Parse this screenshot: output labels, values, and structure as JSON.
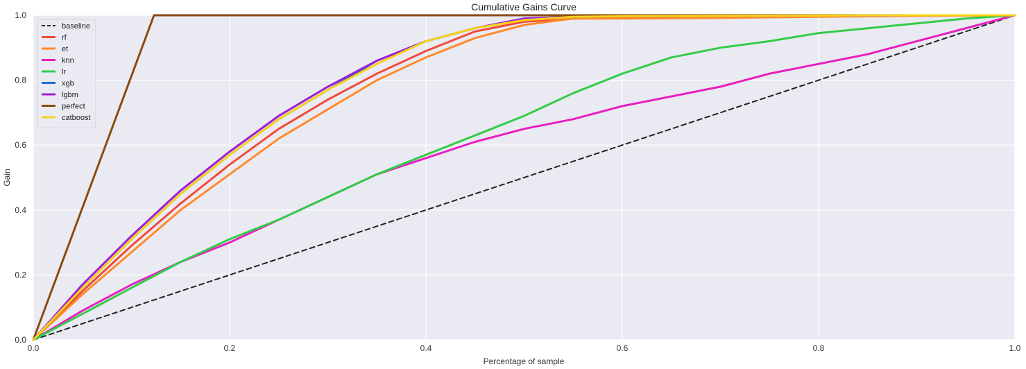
{
  "chart_data": {
    "type": "line",
    "title": "Cumulative Gains Curve",
    "xlabel": "Percentage of sample",
    "ylabel": "Gain",
    "xlim": [
      0,
      1
    ],
    "ylim": [
      0,
      1
    ],
    "xticks": [
      "0.0",
      "0.2",
      "0.4",
      "0.6",
      "0.8",
      "1.0"
    ],
    "yticks": [
      "0.0",
      "0.2",
      "0.4",
      "0.6",
      "0.8",
      "1.0"
    ],
    "grid": true,
    "legend_position": "top-left",
    "series": [
      {
        "name": "baseline",
        "color": "#222222",
        "dashed": true,
        "x": [
          0,
          1
        ],
        "y": [
          0,
          1
        ]
      },
      {
        "name": "rf",
        "color": "#f14a3a",
        "dashed": false,
        "x": [
          0,
          0.05,
          0.1,
          0.15,
          0.2,
          0.25,
          0.3,
          0.35,
          0.4,
          0.45,
          0.5,
          0.55,
          0.6,
          0.7,
          0.8,
          0.9,
          1.0
        ],
        "y": [
          0,
          0.15,
          0.29,
          0.42,
          0.54,
          0.65,
          0.74,
          0.82,
          0.89,
          0.95,
          0.98,
          0.99,
          0.995,
          0.997,
          0.998,
          0.999,
          1.0
        ]
      },
      {
        "name": "et",
        "color": "#ff8a2a",
        "dashed": false,
        "x": [
          0,
          0.05,
          0.1,
          0.15,
          0.2,
          0.25,
          0.3,
          0.35,
          0.4,
          0.45,
          0.5,
          0.55,
          0.6,
          0.7,
          0.8,
          0.9,
          1.0
        ],
        "y": [
          0,
          0.14,
          0.27,
          0.4,
          0.51,
          0.62,
          0.71,
          0.8,
          0.87,
          0.93,
          0.97,
          0.99,
          0.99,
          0.992,
          0.995,
          0.998,
          1.0
        ]
      },
      {
        "name": "knn",
        "color": "#e81fc0",
        "dashed": false,
        "x": [
          0,
          0.05,
          0.1,
          0.15,
          0.2,
          0.25,
          0.3,
          0.35,
          0.4,
          0.45,
          0.5,
          0.55,
          0.6,
          0.65,
          0.7,
          0.75,
          0.8,
          0.85,
          0.9,
          0.95,
          1.0
        ],
        "y": [
          0,
          0.09,
          0.17,
          0.24,
          0.3,
          0.37,
          0.44,
          0.51,
          0.56,
          0.61,
          0.65,
          0.68,
          0.72,
          0.75,
          0.78,
          0.82,
          0.85,
          0.88,
          0.92,
          0.96,
          1.0
        ]
      },
      {
        "name": "lr",
        "color": "#33cc48",
        "dashed": false,
        "x": [
          0,
          0.05,
          0.1,
          0.15,
          0.2,
          0.25,
          0.3,
          0.35,
          0.4,
          0.45,
          0.5,
          0.55,
          0.6,
          0.65,
          0.7,
          0.75,
          0.8,
          0.85,
          0.9,
          0.95,
          1.0
        ],
        "y": [
          0,
          0.08,
          0.16,
          0.24,
          0.31,
          0.37,
          0.44,
          0.51,
          0.57,
          0.63,
          0.69,
          0.76,
          0.82,
          0.87,
          0.9,
          0.92,
          0.945,
          0.96,
          0.975,
          0.99,
          1.0
        ]
      },
      {
        "name": "xgb",
        "color": "#1f6fd1",
        "dashed": false,
        "x": [
          0,
          0.05,
          0.1,
          0.15,
          0.2,
          0.25,
          0.3,
          0.35,
          0.4,
          0.45,
          0.5,
          0.55,
          0.6,
          0.7,
          0.8,
          0.9,
          1.0
        ],
        "y": [
          0,
          0.16,
          0.31,
          0.45,
          0.57,
          0.68,
          0.77,
          0.86,
          0.92,
          0.96,
          0.99,
          0.995,
          0.997,
          0.998,
          0.999,
          1.0,
          1.0
        ]
      },
      {
        "name": "lgbm",
        "color": "#a21cd6",
        "dashed": false,
        "x": [
          0,
          0.05,
          0.1,
          0.15,
          0.2,
          0.25,
          0.3,
          0.35,
          0.4,
          0.45,
          0.5,
          0.55,
          0.6,
          0.7,
          0.8,
          0.9,
          1.0
        ],
        "y": [
          0,
          0.17,
          0.32,
          0.46,
          0.58,
          0.69,
          0.78,
          0.86,
          0.92,
          0.96,
          0.99,
          0.995,
          0.997,
          0.998,
          0.999,
          1.0,
          1.0
        ]
      },
      {
        "name": "perfect",
        "color": "#8a4a10",
        "dashed": false,
        "x": [
          0,
          0.123,
          1.0
        ],
        "y": [
          0,
          1.0,
          1.0
        ]
      },
      {
        "name": "catboost",
        "color": "#f5d31a",
        "dashed": false,
        "x": [
          0,
          0.05,
          0.1,
          0.15,
          0.2,
          0.25,
          0.3,
          0.35,
          0.4,
          0.45,
          0.5,
          0.55,
          0.6,
          0.7,
          0.8,
          0.9,
          1.0
        ],
        "y": [
          0,
          0.16,
          0.31,
          0.45,
          0.57,
          0.68,
          0.77,
          0.85,
          0.92,
          0.96,
          0.985,
          0.995,
          0.997,
          0.998,
          0.999,
          1.0,
          1.0
        ]
      }
    ]
  }
}
